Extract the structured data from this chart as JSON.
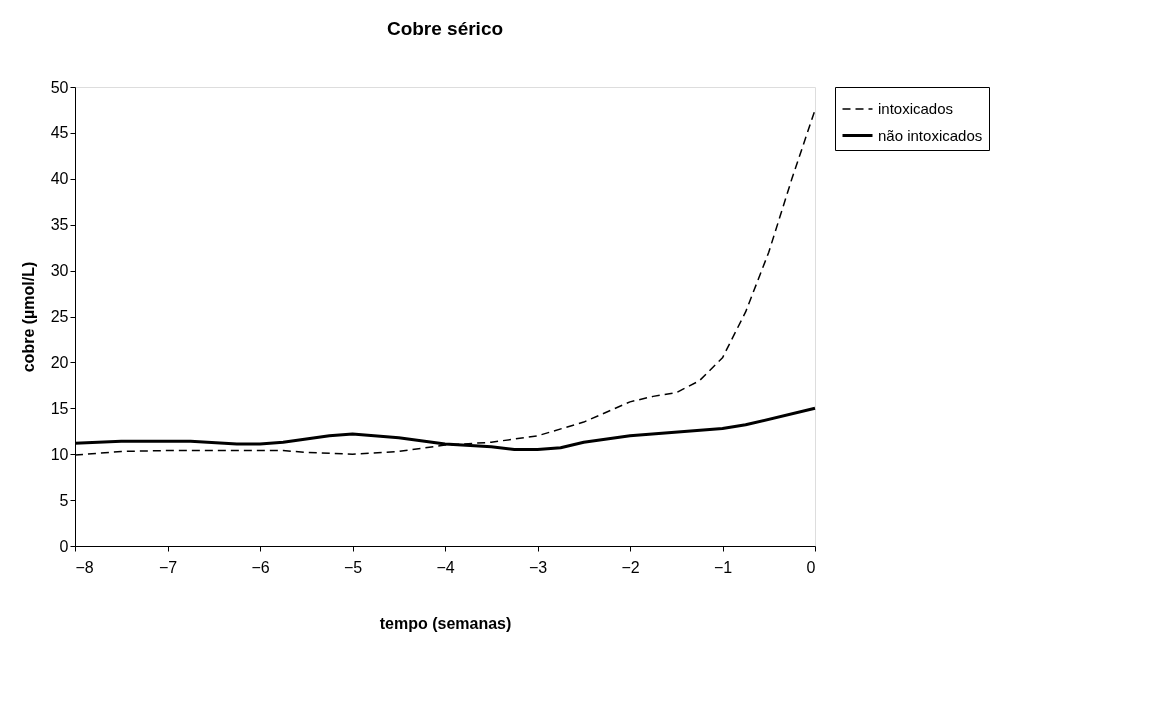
{
  "chart_data": {
    "type": "line",
    "title": "Cobre sérico",
    "xlabel": "tempo (semanas)",
    "ylabel": "cobre (µmol/L)",
    "xlim": [
      -8,
      0
    ],
    "xticks": [
      -8,
      -7,
      -6,
      -5,
      -4,
      -3,
      -2,
      -1,
      0
    ],
    "ylim": [
      0,
      50
    ],
    "yticks": [
      0,
      5,
      10,
      15,
      20,
      25,
      30,
      35,
      40,
      45,
      50
    ],
    "grid": false,
    "legend": "right",
    "marker": "none",
    "series": [
      {
        "name": "intoxicados",
        "color": "#000000",
        "line_style": "dashed",
        "x": [
          -8,
          -7.5,
          -7,
          -6.5,
          -6,
          -5.75,
          -5.5,
          -5,
          -4.5,
          -4,
          -3.5,
          -3,
          -2.5,
          -2,
          -1.75,
          -1.5,
          -1.25,
          -1,
          -0.75,
          -0.5,
          -0.25,
          0
        ],
        "values": [
          9.9,
          10.3,
          10.4,
          10.4,
          10.4,
          10.4,
          10.2,
          10.0,
          10.3,
          11.0,
          11.3,
          12.0,
          13.5,
          15.7,
          16.3,
          16.7,
          18.0,
          20.5,
          25.5,
          32,
          40,
          47.5
        ]
      },
      {
        "name": "não intoxicados",
        "color": "#000000",
        "line_style": "solid",
        "x": [
          -8,
          -7.5,
          -6.75,
          -6.25,
          -6,
          -5.75,
          -5.25,
          -5,
          -4.5,
          -4,
          -3.5,
          -3.25,
          -3,
          -2.75,
          -2.5,
          -2,
          -1,
          -0.75,
          0
        ],
        "values": [
          11.2,
          11.4,
          11.4,
          11.1,
          11.1,
          11.3,
          12.0,
          12.2,
          11.8,
          11.1,
          10.8,
          10.5,
          10.5,
          10.7,
          11.3,
          12.0,
          12.8,
          13.2,
          15.0
        ]
      }
    ]
  }
}
